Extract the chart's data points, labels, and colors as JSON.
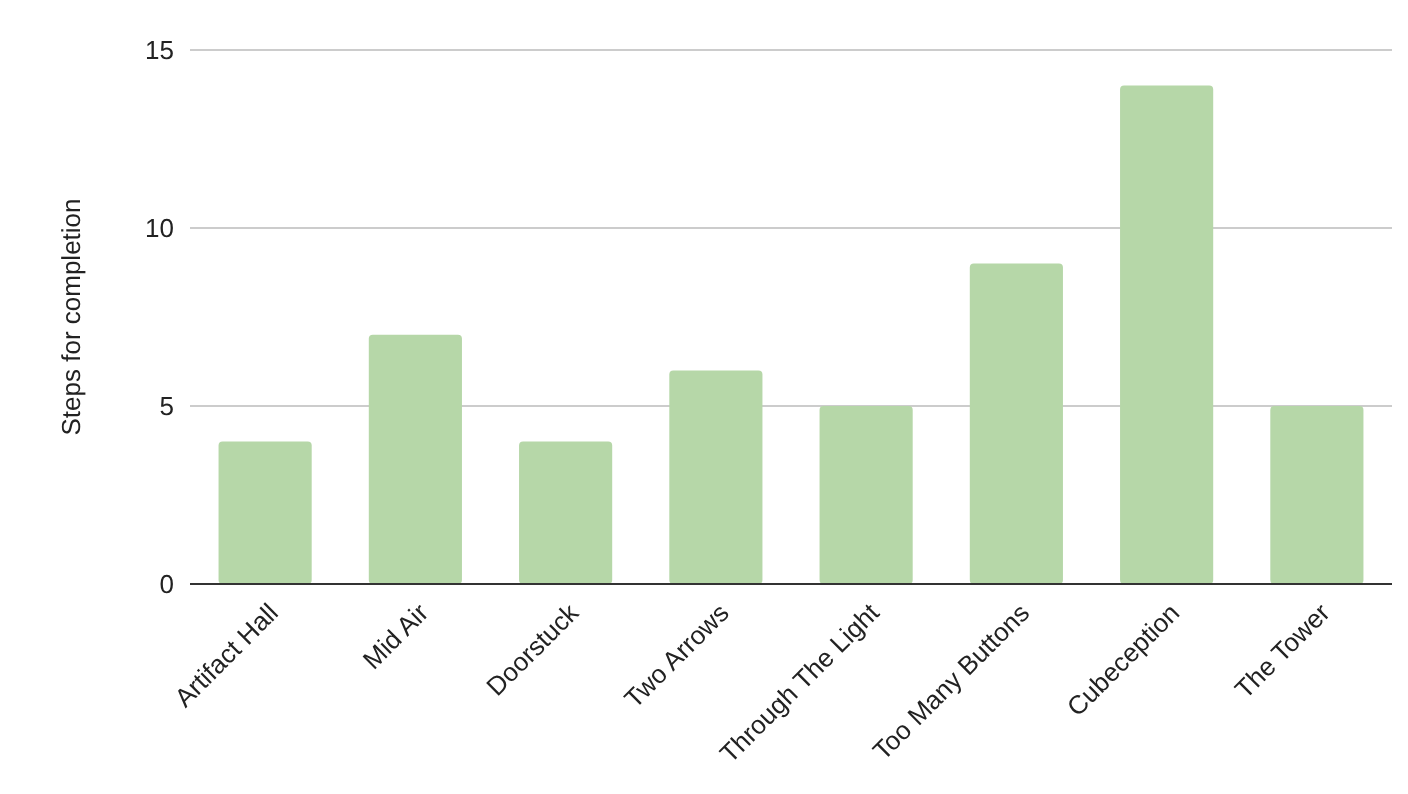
{
  "chart_data": {
    "type": "bar",
    "ylabel": "Steps for completion",
    "categories": [
      "Artifact Hall",
      "Mid Air",
      "Doorstuck",
      "Two Arrows",
      "Through The Light",
      "Too Many Buttons",
      "Cubeception",
      "The Tower"
    ],
    "values": [
      4,
      7,
      4,
      6,
      5,
      9,
      14,
      5
    ],
    "color": "#b6d7a8",
    "ylim": [
      0,
      15
    ],
    "yticks": [
      0,
      5,
      10,
      15
    ],
    "grid": "y"
  }
}
